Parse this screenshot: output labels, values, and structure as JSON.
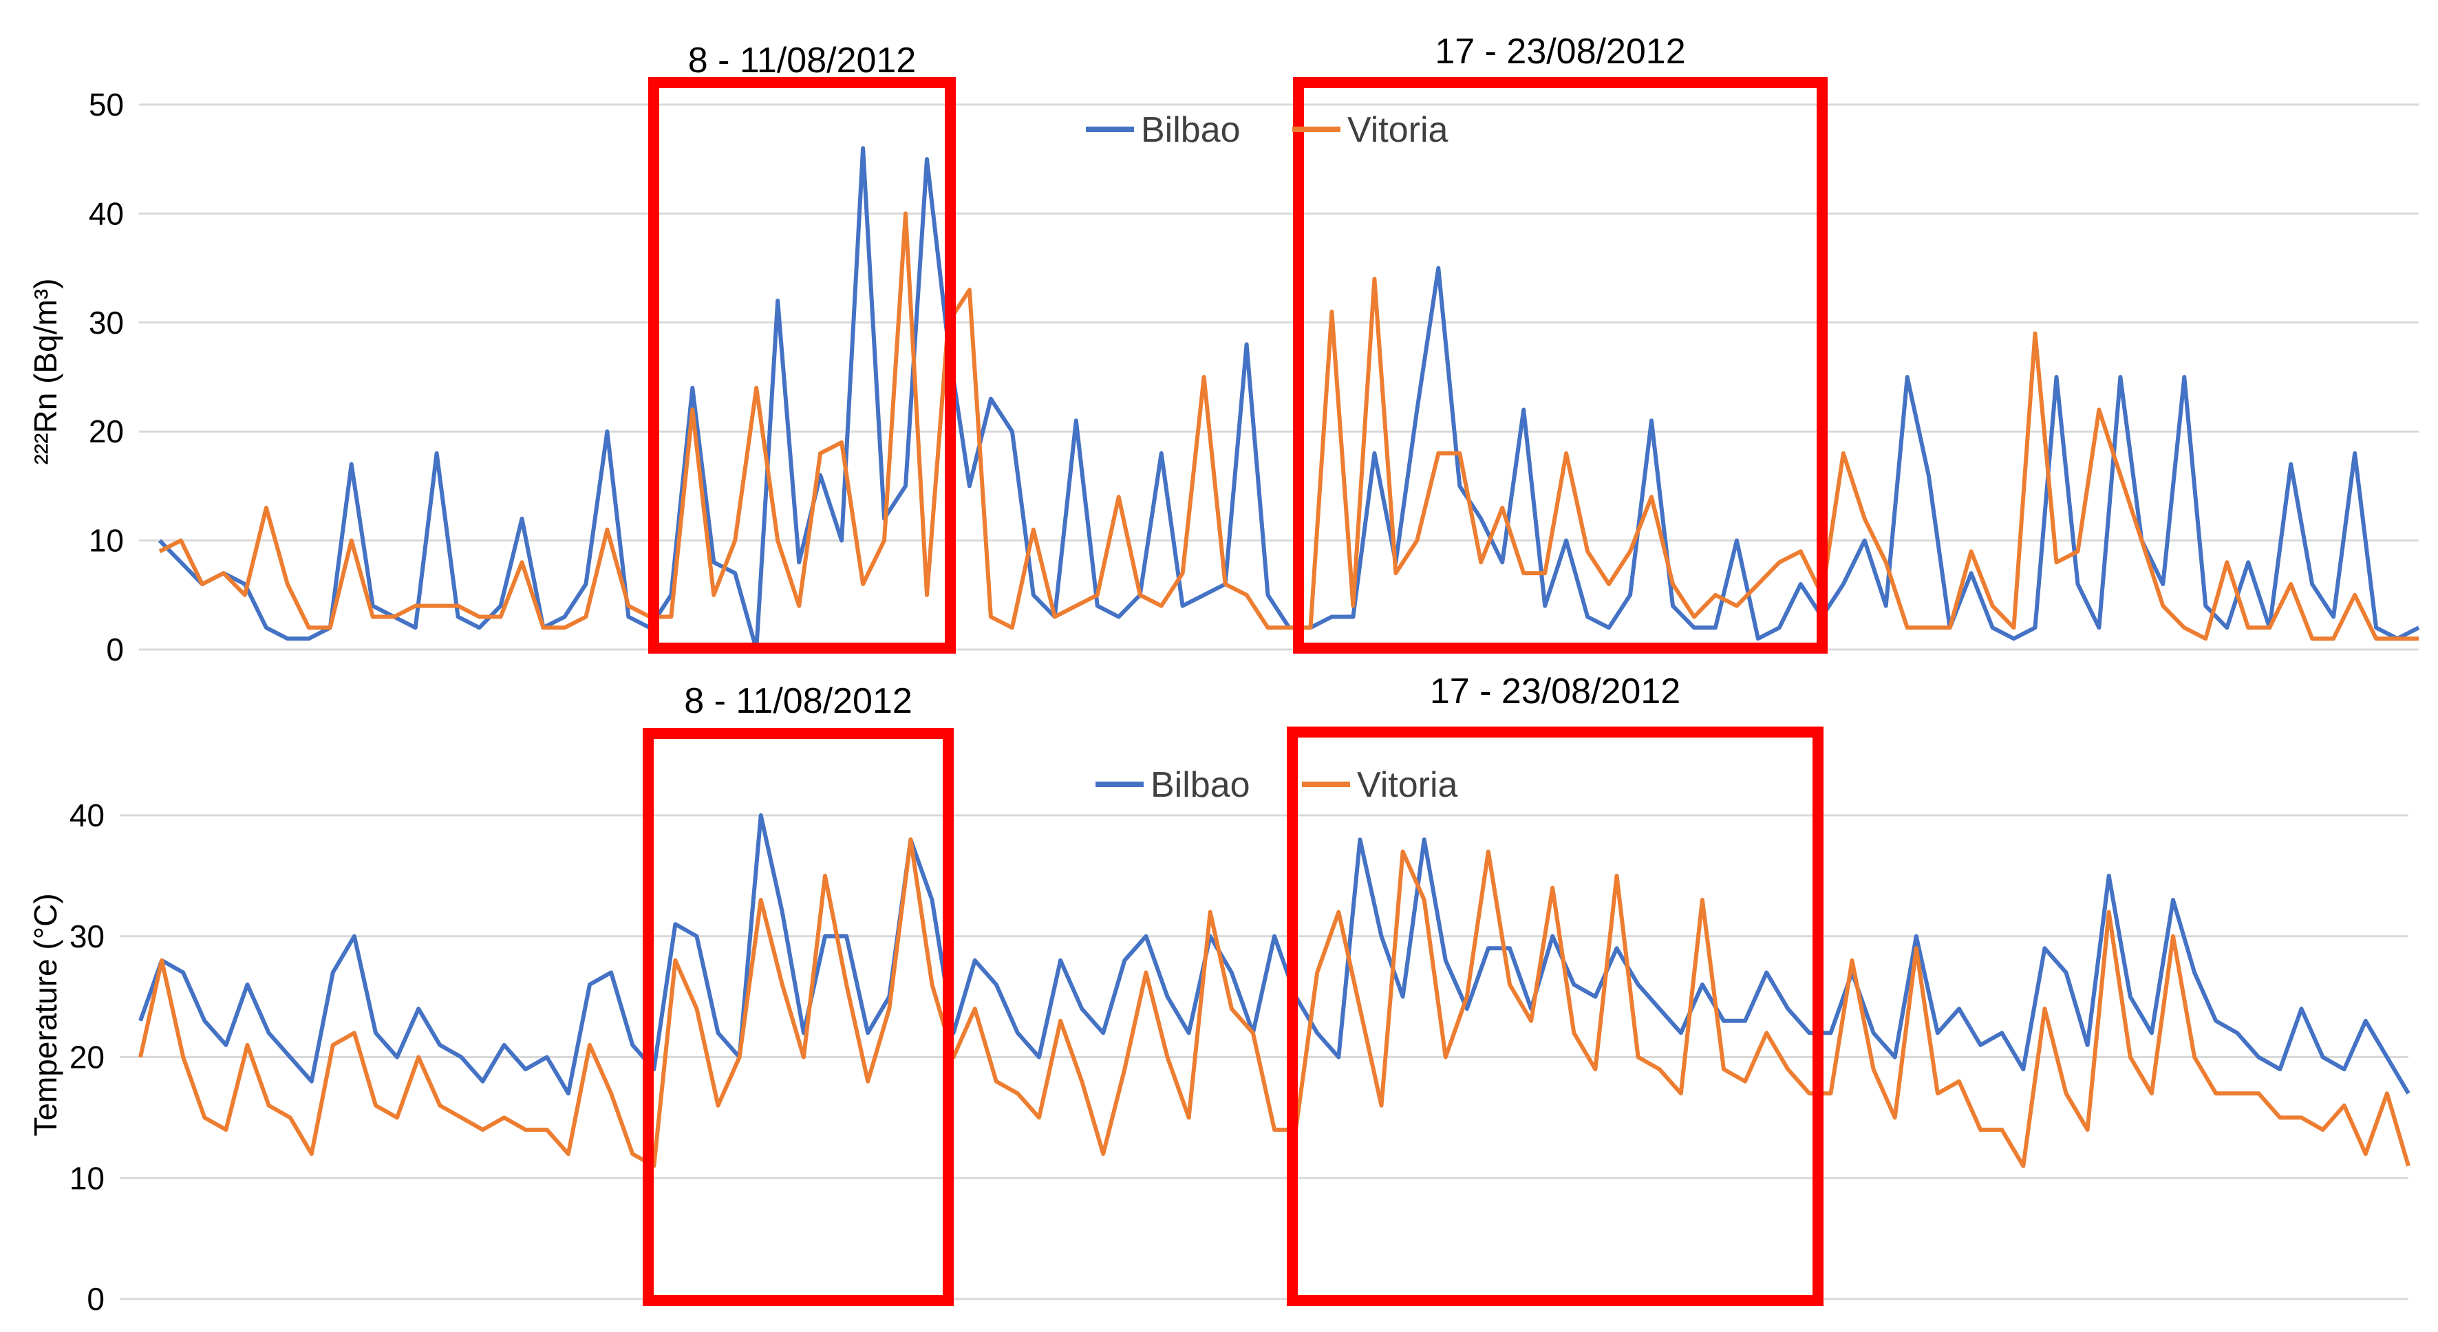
{
  "chart_data": [
    {
      "type": "line",
      "ylabel": "²²²Rn (Bq/m³)",
      "ylim": [
        0,
        50
      ],
      "yticks": [
        0,
        10,
        20,
        30,
        40,
        50
      ],
      "grid": true,
      "legend_placement": "top-center",
      "highlight_boxes": [
        {
          "label": "8 - 11/08/2012",
          "color": "#ff0000"
        },
        {
          "label": "17 - 23/08/2012",
          "color": "#ff0000"
        }
      ],
      "series": [
        {
          "name": "Bilbao",
          "color": "#4472c4",
          "values": [
            10,
            8,
            6,
            7,
            6,
            2,
            1,
            1,
            2,
            17,
            4,
            3,
            2,
            18,
            3,
            2,
            4,
            12,
            2,
            3,
            6,
            20,
            3,
            2,
            5,
            24,
            8,
            7,
            0,
            32,
            8,
            16,
            10,
            46,
            12,
            15,
            45,
            28,
            15,
            23,
            20,
            5,
            3,
            21,
            4,
            3,
            5,
            18,
            4,
            5,
            6,
            28,
            5,
            2,
            2,
            3,
            3,
            18,
            8,
            22,
            35,
            15,
            12,
            8,
            22,
            4,
            10,
            3,
            2,
            5,
            21,
            4,
            2,
            2,
            10,
            1,
            2,
            6,
            3,
            6,
            10,
            4,
            25,
            16,
            2,
            7,
            2,
            1,
            2,
            25,
            6,
            2,
            25,
            10,
            6,
            25,
            4,
            2,
            8,
            2,
            17,
            6,
            3,
            18,
            2,
            1,
            2
          ]
        },
        {
          "name": "Vitoria",
          "color": "#ed7d31",
          "values": [
            9,
            10,
            6,
            7,
            5,
            13,
            6,
            2,
            2,
            10,
            3,
            3,
            4,
            4,
            4,
            3,
            3,
            8,
            2,
            2,
            3,
            11,
            4,
            3,
            3,
            22,
            5,
            10,
            24,
            10,
            4,
            18,
            19,
            6,
            10,
            40,
            5,
            30,
            33,
            3,
            2,
            11,
            3,
            4,
            5,
            14,
            5,
            4,
            7,
            25,
            6,
            5,
            2,
            2,
            2,
            31,
            4,
            34,
            7,
            10,
            18,
            18,
            8,
            13,
            7,
            7,
            18,
            9,
            6,
            9,
            14,
            6,
            3,
            5,
            4,
            6,
            8,
            9,
            5,
            18,
            12,
            8,
            2,
            2,
            2,
            9,
            4,
            2,
            29,
            8,
            9,
            22,
            16,
            10,
            4,
            2,
            1,
            8,
            2,
            2,
            6,
            1,
            1,
            5,
            1,
            1,
            1
          ]
        }
      ]
    },
    {
      "type": "line",
      "ylabel": "Temperature (°C)",
      "ylim": [
        0,
        40
      ],
      "yticks": [
        0,
        10,
        20,
        30,
        40
      ],
      "grid": true,
      "legend_placement": "top-center",
      "highlight_boxes": [
        {
          "label": "8 - 11/08/2012",
          "color": "#ff0000"
        },
        {
          "label": "17 - 23/08/2012",
          "color": "#ff0000"
        }
      ],
      "series": [
        {
          "name": "Bilbao",
          "color": "#4472c4",
          "values": [
            23,
            28,
            27,
            23,
            21,
            26,
            22,
            20,
            18,
            27,
            30,
            22,
            20,
            24,
            21,
            20,
            18,
            21,
            19,
            20,
            17,
            26,
            27,
            21,
            19,
            31,
            30,
            22,
            20,
            40,
            32,
            22,
            30,
            30,
            22,
            25,
            38,
            33,
            22,
            28,
            26,
            22,
            20,
            28,
            24,
            22,
            28,
            30,
            25,
            22,
            30,
            27,
            22,
            30,
            25,
            22,
            20,
            38,
            30,
            25,
            38,
            28,
            24,
            29,
            29,
            24,
            30,
            26,
            25,
            29,
            26,
            24,
            22,
            26,
            23,
            23,
            27,
            24,
            22,
            22,
            27,
            22,
            20,
            30,
            22,
            24,
            21,
            22,
            19,
            29,
            27,
            21,
            35,
            25,
            22,
            33,
            27,
            23,
            22,
            20,
            19,
            24,
            20,
            19,
            23,
            20,
            17
          ]
        },
        {
          "name": "Vitoria",
          "color": "#ed7d31",
          "values": [
            20,
            28,
            20,
            15,
            14,
            21,
            16,
            15,
            12,
            21,
            22,
            16,
            15,
            20,
            16,
            15,
            14,
            15,
            14,
            14,
            12,
            21,
            17,
            12,
            11,
            28,
            24,
            16,
            20,
            33,
            26,
            20,
            35,
            26,
            18,
            24,
            38,
            26,
            20,
            24,
            18,
            17,
            15,
            23,
            18,
            12,
            19,
            27,
            20,
            15,
            32,
            24,
            22,
            14,
            14,
            27,
            32,
            24,
            16,
            37,
            33,
            20,
            25,
            37,
            26,
            23,
            34,
            22,
            19,
            35,
            20,
            19,
            17,
            33,
            19,
            18,
            22,
            19,
            17,
            17,
            28,
            19,
            15,
            29,
            17,
            18,
            14,
            14,
            11,
            24,
            17,
            14,
            32,
            20,
            17,
            30,
            20,
            17,
            17,
            17,
            15,
            15,
            14,
            16,
            12,
            17,
            11
          ]
        }
      ]
    }
  ]
}
